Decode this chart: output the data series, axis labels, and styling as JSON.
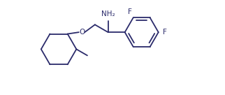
{
  "background": "#ffffff",
  "line_color": "#2b2b6b",
  "line_width": 1.3,
  "text_color": "#2b2b6b",
  "font_size": 7.0,
  "xlim": [
    -0.5,
    10.5
  ],
  "ylim": [
    -3.2,
    2.4
  ]
}
